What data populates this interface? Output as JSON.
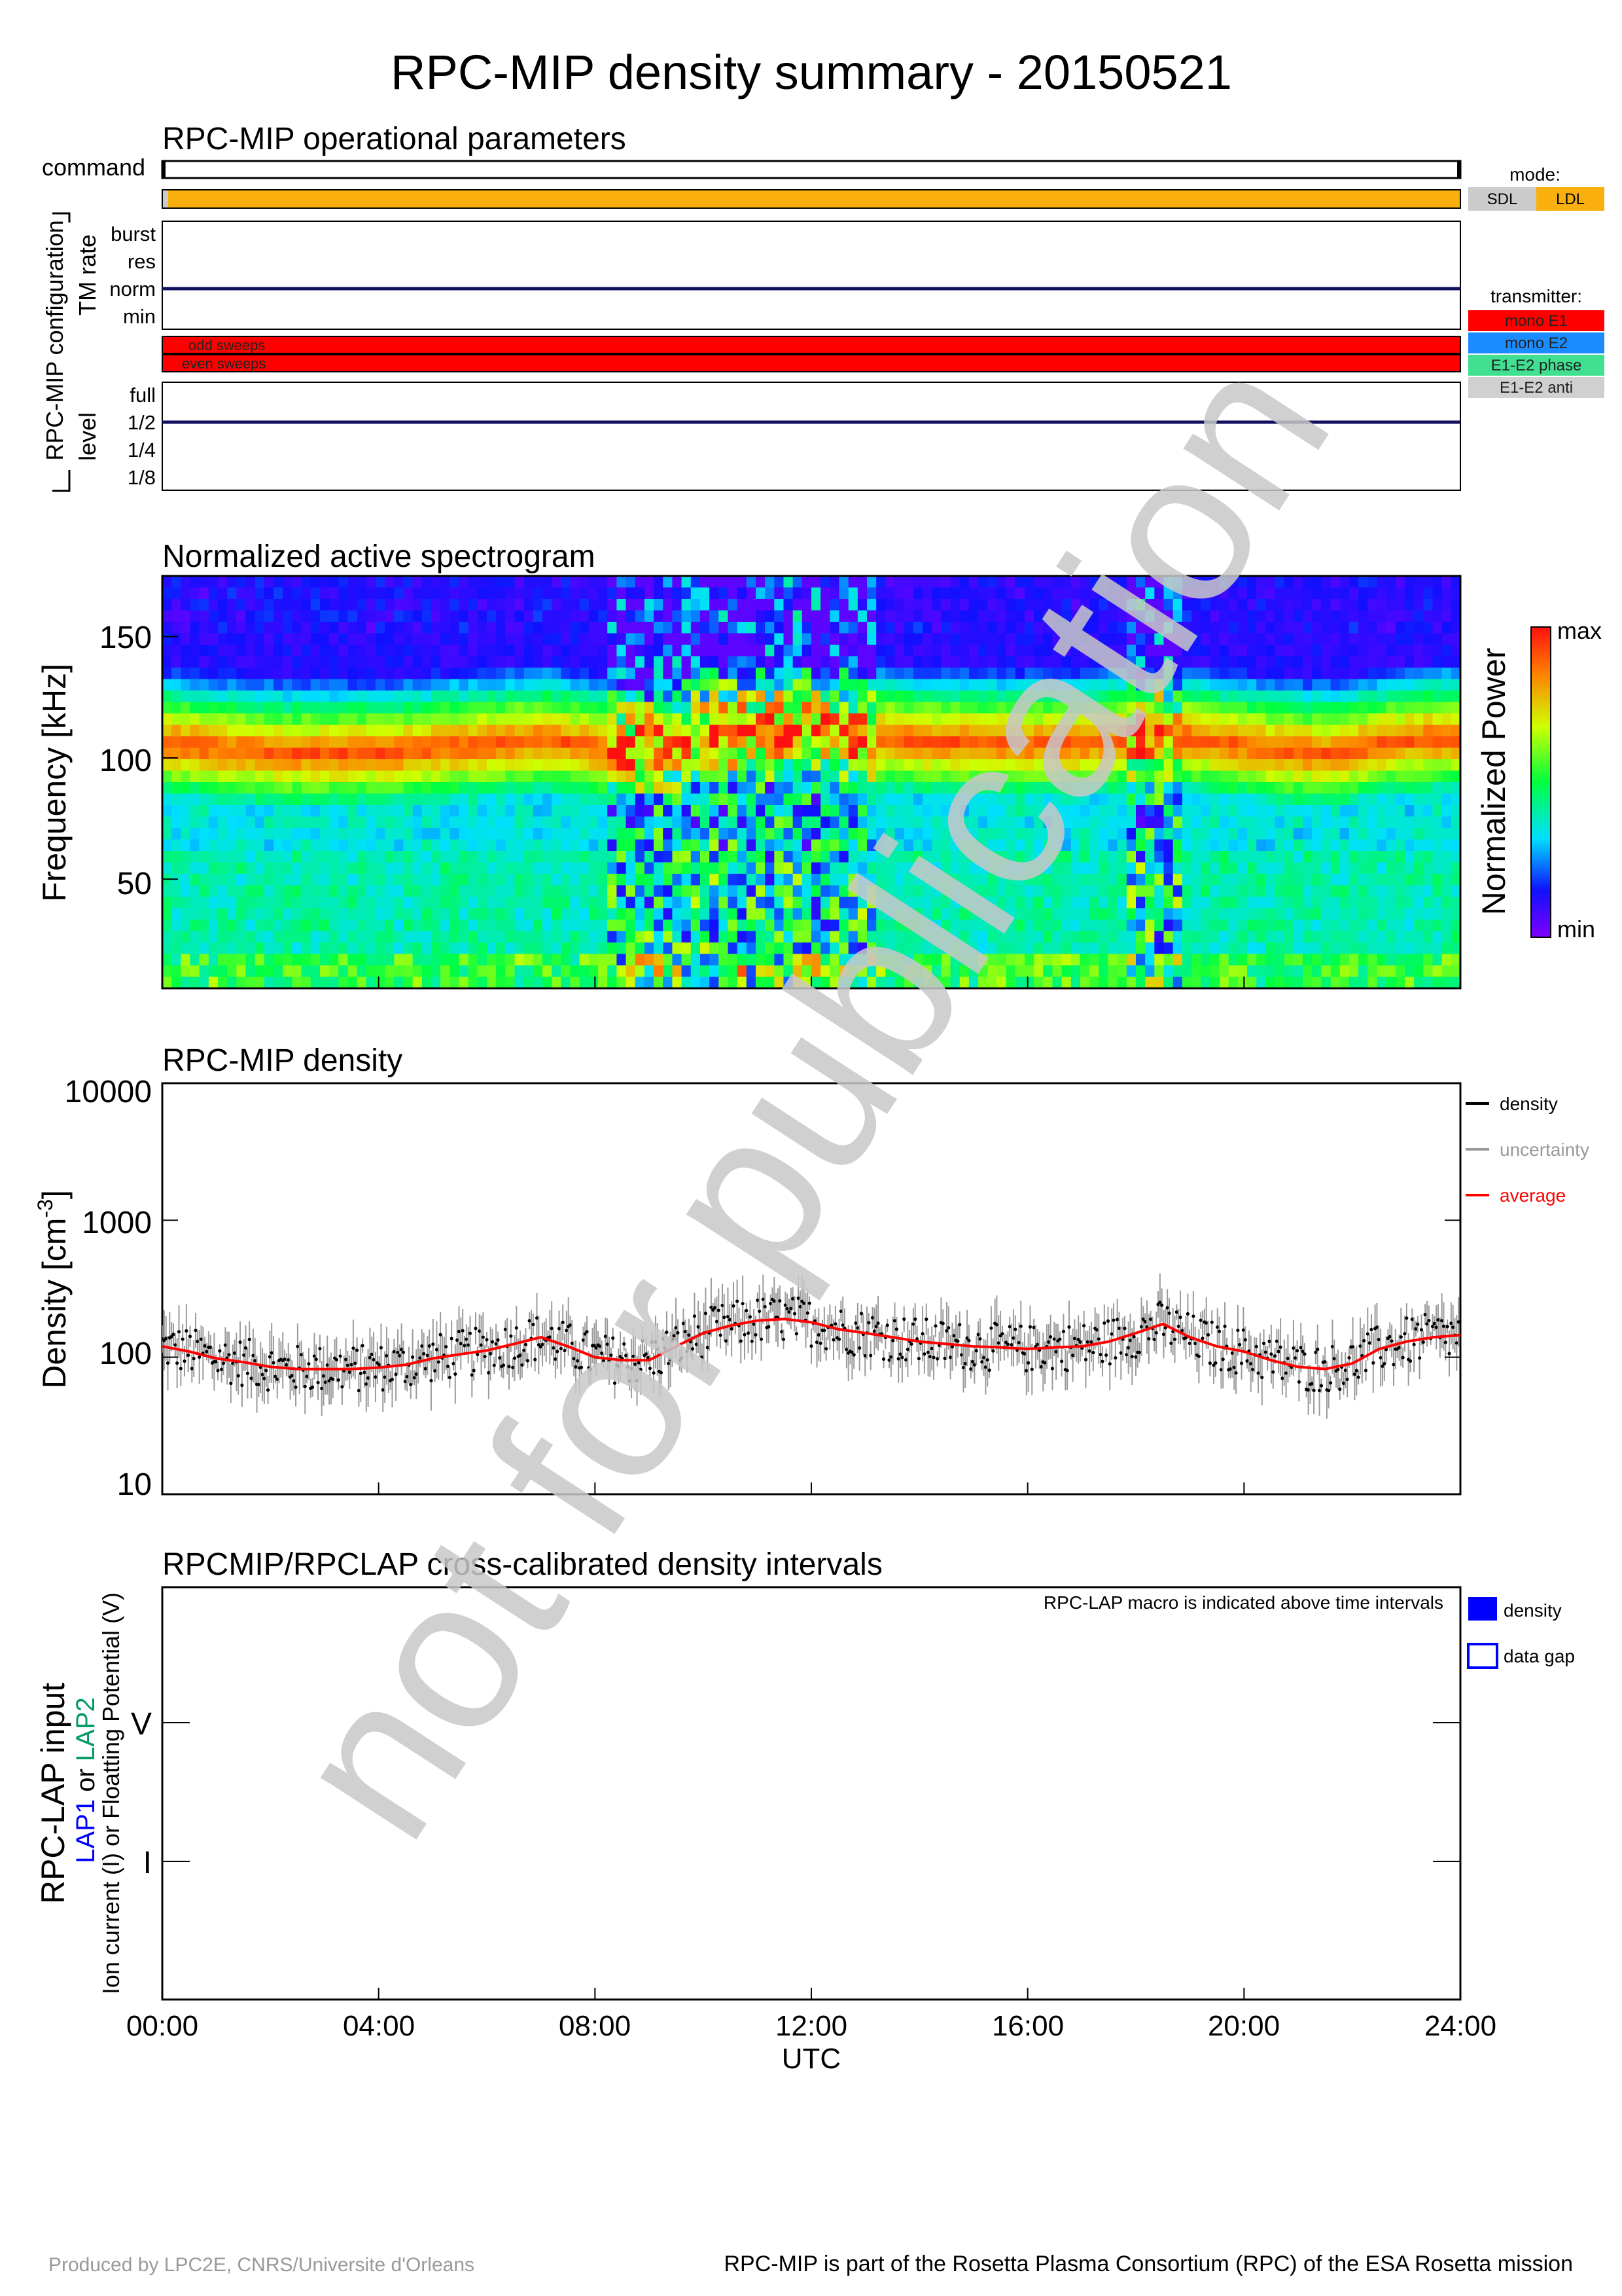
{
  "title": "RPC-MIP density summary - 20150521",
  "colors": {
    "ldl": "#f9b00f",
    "sdl": "#cccccc",
    "mono_e1": "#ff0000",
    "mono_e2": "#1a8cff",
    "e1e2_phase": "#40e090",
    "e1e2_anti": "#d0d0d0",
    "navy": "#101060",
    "lap1": "#0000ff",
    "lap2": "#009966",
    "average": "#ff0000",
    "uncertainty": "#999999",
    "watermark": "#c8c8c8"
  },
  "operational": {
    "title": "RPC-MIP operational parameters",
    "command_label": "command",
    "config_label": "RPC-MIP configuration",
    "tm_rate_label": "TM rate",
    "tm_rate_levels": [
      "burst",
      "res",
      "norm",
      "min"
    ],
    "tm_rate_value": "norm",
    "sweeps": [
      "odd sweeps",
      "even sweeps"
    ],
    "level_label": "level",
    "level_levels": [
      "full",
      "1/2",
      "1/4",
      "1/8"
    ],
    "level_value": "1/2",
    "mode_legend_title": "mode:",
    "mode_legend": [
      "SDL",
      "LDL"
    ],
    "transmitter_legend_title": "transmitter:",
    "transmitter_legend": [
      "mono E1",
      "mono E2",
      "E1-E2 phase",
      "E1-E2 anti"
    ]
  },
  "spectrogram": {
    "title": "Normalized active spectrogram",
    "ylabel": "Frequency [kHz]",
    "yticks": [
      "150",
      "100",
      "50"
    ],
    "colorbar_label": "Normalized Power",
    "colorbar_max": "max",
    "colorbar_min": "min"
  },
  "density": {
    "title": "RPC-MIP density",
    "ylabel": "Density [cm",
    "ylabel_sup": "-3",
    "ylabel_end": "]",
    "yticks": [
      "10000",
      "1000",
      "100",
      "10"
    ],
    "legend": [
      "density",
      "uncertainty",
      "average"
    ]
  },
  "crosscal": {
    "title": "RPCMIP/RPCLAP cross-calibrated density intervals",
    "note": "RPC-LAP macro is indicated above time intervals",
    "ylabel_main": "RPC-LAP input",
    "ylabel_lap1": "LAP1",
    "ylabel_or": " or ",
    "ylabel_lap2": "LAP2",
    "ylabel_sub": "Ion current (I) or Floatting Potential (V)",
    "yticks": [
      "V",
      "I"
    ],
    "legend": [
      "density",
      "data gap"
    ]
  },
  "xaxis": {
    "ticks": [
      "00:00",
      "04:00",
      "08:00",
      "12:00",
      "16:00",
      "20:00",
      "24:00"
    ],
    "label": "UTC"
  },
  "footer": {
    "left": "Produced by LPC2E, CNRS/Universite d'Orleans",
    "right": "RPC-MIP is part of the Rosetta Plasma Consortium (RPC) of the ESA Rosetta mission"
  },
  "watermark": "not for publication",
  "chart_data": [
    {
      "type": "line",
      "title": "RPC-MIP density",
      "xlabel": "UTC",
      "ylabel": "Density [cm-3]",
      "yscale": "log",
      "ylim": [
        10,
        10000
      ],
      "xlim": [
        0,
        24
      ],
      "series": [
        {
          "name": "average",
          "x": [
            0,
            0.5,
            1,
            1.5,
            2,
            2.5,
            3,
            3.5,
            4,
            4.5,
            5,
            5.5,
            6,
            6.5,
            7,
            7.5,
            8,
            8.5,
            9,
            9.5,
            10,
            10.5,
            11,
            11.5,
            12,
            12.5,
            13,
            13.5,
            14,
            14.5,
            15,
            15.5,
            16,
            16.5,
            17,
            17.5,
            18,
            18.5,
            19,
            19.5,
            20,
            20.5,
            21,
            21.5,
            22,
            22.5,
            23,
            23.5,
            24
          ],
          "y": [
            120,
            110,
            98,
            92,
            85,
            82,
            82,
            82,
            84,
            88,
            98,
            105,
            112,
            125,
            140,
            120,
            100,
            95,
            95,
            120,
            150,
            170,
            185,
            190,
            180,
            160,
            150,
            140,
            130,
            125,
            120,
            118,
            115,
            118,
            120,
            130,
            150,
            175,
            140,
            120,
            110,
            95,
            85,
            82,
            90,
            115,
            130,
            140,
            145
          ]
        }
      ]
    },
    {
      "type": "heatmap",
      "title": "Normalized active spectrogram",
      "xlabel": "UTC",
      "ylabel": "Frequency [kHz]",
      "ylim": [
        5,
        175
      ],
      "xlim": [
        0,
        24
      ]
    }
  ]
}
